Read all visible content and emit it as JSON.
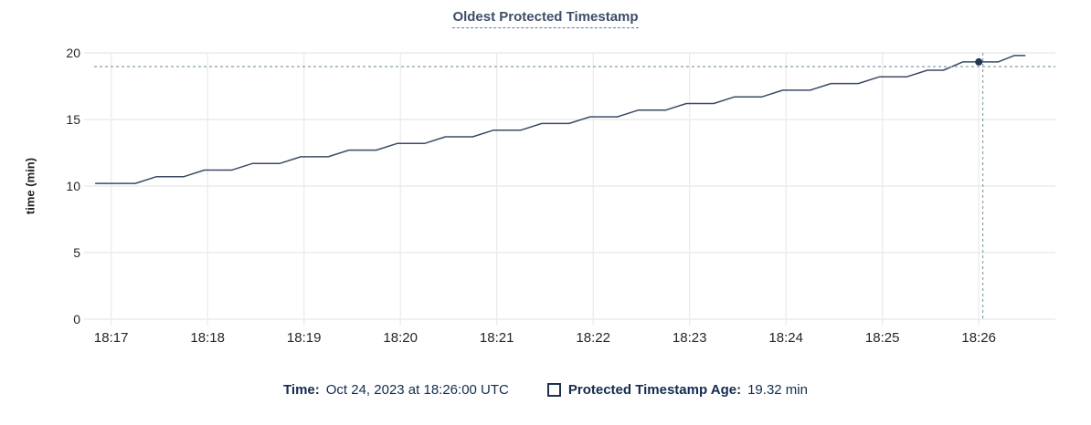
{
  "title": "Oldest Protected Timestamp",
  "colors": {
    "background": "#ffffff",
    "title_text": "#3f4e69",
    "series_line": "#3b4a66",
    "marker_fill": "#263652",
    "gridline": "#ececec",
    "crosshair": "#8fa7b5",
    "axis_text": "#22262c",
    "footer_text": "#132c4f"
  },
  "chart_data": {
    "type": "line",
    "title": "Oldest Protected Timestamp",
    "xlabel": "",
    "ylabel": "time (min)",
    "ylim": [
      0,
      20
    ],
    "grid": true,
    "legend_position": "bottom",
    "yticks": [
      {
        "value": 0,
        "label": "0"
      },
      {
        "value": 5,
        "label": "5"
      },
      {
        "value": 10,
        "label": "10"
      },
      {
        "value": 15,
        "label": "15"
      },
      {
        "value": 20,
        "label": "20"
      }
    ],
    "xticks": [
      {
        "t": 0,
        "label": "18:17"
      },
      {
        "t": 60,
        "label": "18:18"
      },
      {
        "t": 120,
        "label": "18:19"
      },
      {
        "t": 180,
        "label": "18:20"
      },
      {
        "t": 240,
        "label": "18:21"
      },
      {
        "t": 300,
        "label": "18:22"
      },
      {
        "t": 360,
        "label": "18:23"
      },
      {
        "t": 420,
        "label": "18:24"
      },
      {
        "t": 480,
        "label": "18:25"
      },
      {
        "t": 540,
        "label": "18:26"
      }
    ],
    "series": [
      {
        "name": "Protected Timestamp Age",
        "unit": "min",
        "points": [
          [
            -10,
            10.2
          ],
          [
            15,
            10.2
          ],
          [
            28,
            10.7
          ],
          [
            45,
            10.7
          ],
          [
            58,
            11.2
          ],
          [
            75,
            11.2
          ],
          [
            88,
            11.7
          ],
          [
            105,
            11.7
          ],
          [
            118,
            12.2
          ],
          [
            135,
            12.2
          ],
          [
            148,
            12.7
          ],
          [
            165,
            12.7
          ],
          [
            178,
            13.2
          ],
          [
            195,
            13.2
          ],
          [
            208,
            13.7
          ],
          [
            225,
            13.7
          ],
          [
            238,
            14.2
          ],
          [
            255,
            14.2
          ],
          [
            268,
            14.7
          ],
          [
            285,
            14.7
          ],
          [
            298,
            15.2
          ],
          [
            315,
            15.2
          ],
          [
            328,
            15.7
          ],
          [
            345,
            15.7
          ],
          [
            358,
            16.2
          ],
          [
            375,
            16.2
          ],
          [
            388,
            16.7
          ],
          [
            405,
            16.7
          ],
          [
            418,
            17.2
          ],
          [
            435,
            17.2
          ],
          [
            448,
            17.7
          ],
          [
            465,
            17.7
          ],
          [
            478,
            18.2
          ],
          [
            495,
            18.2
          ],
          [
            508,
            18.7
          ],
          [
            518,
            18.7
          ],
          [
            530,
            19.32
          ],
          [
            552,
            19.32
          ],
          [
            562,
            19.8
          ],
          [
            569,
            19.8
          ]
        ]
      }
    ],
    "hover": {
      "crosshair_t": 542.5,
      "crosshair_value": 18.97,
      "snapped_point_t": 540,
      "snapped_point_value": 19.32
    }
  },
  "footer": {
    "time_label": "Time:",
    "time_value": "Oct 24, 2023 at 18:26:00 UTC",
    "series_label": "Protected Timestamp Age:",
    "series_value": "19.32 min"
  }
}
